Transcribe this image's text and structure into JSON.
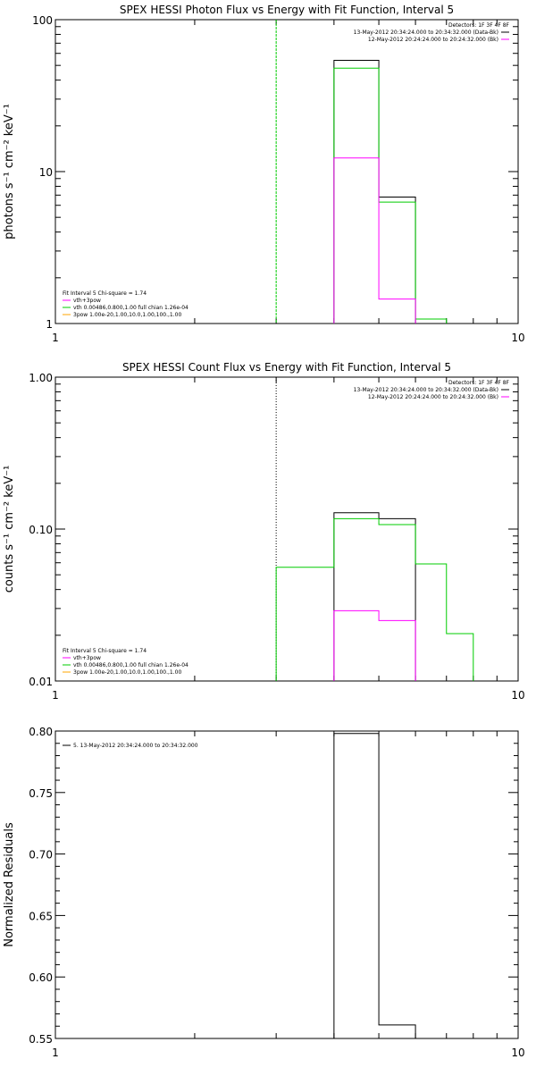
{
  "colors": {
    "data": "#000000",
    "vth": "#ff00ff",
    "total": "#00cc00",
    "bg": "#ffffff"
  },
  "chart_data": [
    {
      "type": "line",
      "title": "SPEX HESSI Photon Flux vs Energy with Fit Function, Interval 5",
      "ylabel": "photons s⁻¹ cm⁻² keV⁻¹",
      "xscale": "log",
      "yscale": "log",
      "xlim": [
        1,
        10
      ],
      "ylim": [
        1,
        100
      ],
      "xticks": [
        1,
        10
      ],
      "xtick_labels": [
        "1",
        "10"
      ],
      "yticks": [
        1,
        10,
        100
      ],
      "ytick_labels": [
        "1",
        "10",
        "100"
      ],
      "vline": {
        "x": 3.0,
        "color": "#00cc00",
        "style": "dashed"
      },
      "series": [
        {
          "color": "#000000",
          "edges": [
            4,
            5,
            6
          ],
          "values": [
            54,
            6.8
          ]
        },
        {
          "color": "#00cc00",
          "edges": [
            4,
            5,
            6,
            7
          ],
          "values": [
            48,
            6.3,
            1.07
          ]
        },
        {
          "color": "#ff00ff",
          "edges": [
            4,
            5,
            6
          ],
          "values": [
            12.3,
            1.45
          ]
        }
      ],
      "legend_right": {
        "header": "Detectors: 1F 3F 4F 8F",
        "lines": [
          {
            "text": "13-May-2012 20:34:24.000 to 20:34:32.000 (Data-Bk)",
            "color": "#000000"
          },
          {
            "text": "12-May-2012 20:24:24.000 to 20:24:32.000 (Bk)",
            "color": "#ff00ff"
          }
        ]
      },
      "legend_left": {
        "header": "Fit Interval 5   Chi-square = 1.74",
        "lines": [
          {
            "text": "vth+3pow",
            "color": "#ff00ff"
          },
          {
            "text": "vth 0.00486,0.800,1.00  full chian 1.26e-04",
            "color": "#00cc00"
          },
          {
            "text": "3pow 1.00e-20,1.00,10.0,1.00,100.,1.00",
            "color": "#ffa500"
          }
        ]
      }
    },
    {
      "type": "line",
      "title": "SPEX HESSI Count Flux vs Energy with Fit Function, Interval 5",
      "ylabel": "counts s⁻¹ cm⁻² keV⁻¹",
      "xscale": "log",
      "yscale": "log",
      "xlim": [
        1,
        10
      ],
      "ylim": [
        0.01,
        1.0
      ],
      "xticks": [
        1,
        10
      ],
      "xtick_labels": [
        "1",
        "10"
      ],
      "yticks": [
        0.01,
        0.1,
        1.0
      ],
      "ytick_labels": [
        "0.01",
        "0.10",
        "1.00"
      ],
      "vline": {
        "x": 3.0,
        "color": "#000000",
        "style": "dotted"
      },
      "series": [
        {
          "color": "#000000",
          "edges": [
            4,
            5,
            6
          ],
          "values": [
            0.128,
            0.117
          ]
        },
        {
          "color": "#00cc00",
          "edges": [
            3,
            4,
            5,
            6,
            7,
            8
          ],
          "values": [
            0.056,
            0.117,
            0.107,
            0.059,
            0.0205
          ]
        },
        {
          "color": "#ff00ff",
          "edges": [
            4,
            5,
            6
          ],
          "values": [
            0.029,
            0.025
          ]
        }
      ],
      "legend_right": {
        "header": "Detectors: 1F 3F 4F 8F",
        "lines": [
          {
            "text": "13-May-2012 20:34:24.000 to 20:34:32.000 (Data-Bk)",
            "color": "#000000"
          },
          {
            "text": "12-May-2012 20:24:24.000 to 20:24:32.000 (Bk)",
            "color": "#ff00ff"
          }
        ]
      },
      "legend_left": {
        "header": "Fit Interval 5   Chi-square = 1.74",
        "lines": [
          {
            "text": "vth+3pow",
            "color": "#ff00ff"
          },
          {
            "text": "vth 0.00486,0.800,1.00  full chian 1.26e-04",
            "color": "#00cc00"
          },
          {
            "text": "3pow 1.00e-20,1.00,10.0,1.00,100.,1.00",
            "color": "#ffa500"
          }
        ]
      }
    },
    {
      "type": "line",
      "title": "",
      "ylabel": "Normalized Residuals",
      "xscale": "log",
      "yscale": "linear",
      "xlim": [
        1,
        10
      ],
      "ylim": [
        0.55,
        0.8
      ],
      "xticks": [
        1,
        10
      ],
      "xtick_labels": [
        "1",
        "10"
      ],
      "yticks": [
        0.55,
        0.6,
        0.65,
        0.7,
        0.75,
        0.8
      ],
      "ytick_labels": [
        "0.55",
        "0.60",
        "0.65",
        "0.70",
        "0.75",
        "0.80"
      ],
      "series": [
        {
          "color": "#000000",
          "edges": [
            4,
            5,
            6
          ],
          "values": [
            0.798,
            0.561
          ]
        }
      ],
      "legend_left": {
        "header": "",
        "lines": [
          {
            "text": "5. 13-May-2012 20:34:24.000 to 20:34:32.000",
            "color": "#000000"
          }
        ]
      }
    }
  ]
}
